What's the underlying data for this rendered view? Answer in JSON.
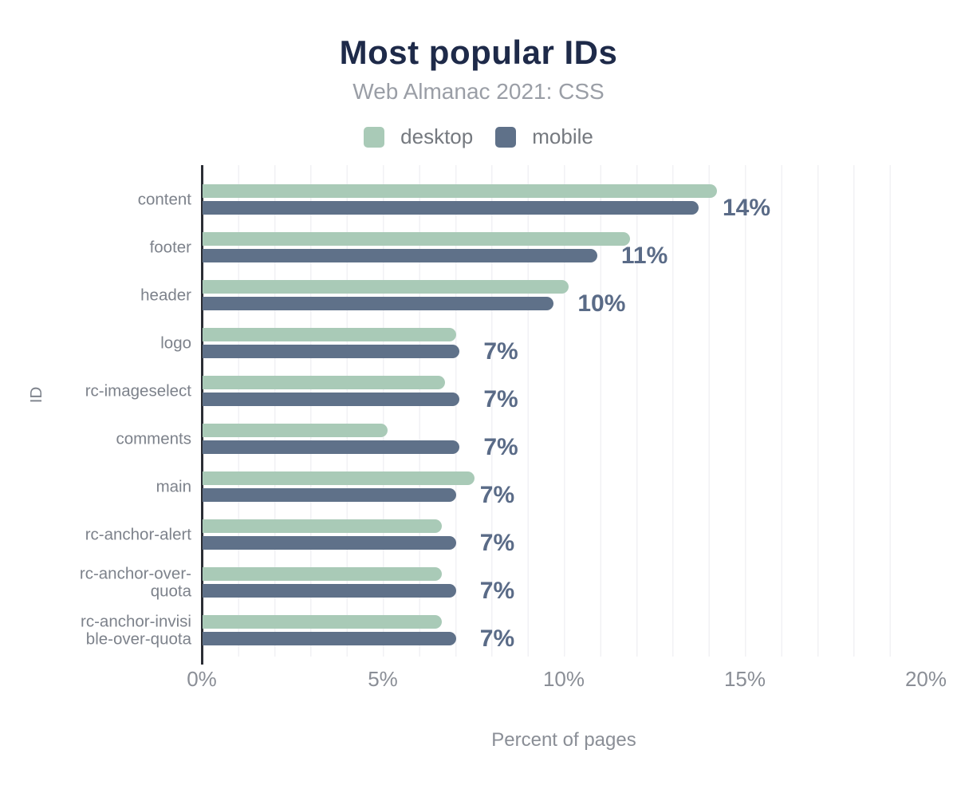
{
  "title": "Most popular IDs",
  "subtitle": "Web Almanac 2021: CSS",
  "axes": {
    "x_title": "Percent of pages",
    "y_title": "ID"
  },
  "colors": {
    "title": "#1e2a49",
    "desktop_bar": "#a9cab7",
    "mobile_bar": "#5f7189",
    "value_label": "#5a6b87",
    "axis_line": "#2b2e35"
  },
  "chart_data": {
    "type": "bar",
    "orientation": "horizontal",
    "title": "Most popular IDs",
    "subtitle": "Web Almanac 2021: CSS",
    "xlabel": "Percent of pages",
    "ylabel": "ID",
    "xlim": [
      0,
      20
    ],
    "x_ticks": [
      "0%",
      "5%",
      "10%",
      "15%",
      "20%"
    ],
    "x_tick_values": [
      0,
      5,
      10,
      15,
      20
    ],
    "grid": "vertical minor gridlines every 1%",
    "legend_position": "top",
    "categories": [
      "content",
      "footer",
      "header",
      "logo",
      "rc-imageselect",
      "comments",
      "main",
      "rc-anchor-alert",
      "rc-anchor-over-quota",
      "rc-anchor-invisible-over-quota"
    ],
    "category_display_lines": [
      [
        "content"
      ],
      [
        "footer"
      ],
      [
        "header"
      ],
      [
        "logo"
      ],
      [
        "rc-imageselect"
      ],
      [
        "comments"
      ],
      [
        "main"
      ],
      [
        "rc-anchor-alert"
      ],
      [
        "rc-anchor-over-",
        "quota"
      ],
      [
        "rc-anchor-invisi",
        "ble-over-quota"
      ]
    ],
    "series": [
      {
        "name": "desktop",
        "color": "#a9cab7",
        "values": [
          14.2,
          11.8,
          10.1,
          7.0,
          6.7,
          5.1,
          7.5,
          6.6,
          6.6,
          6.6
        ]
      },
      {
        "name": "mobile",
        "color": "#5f7189",
        "values": [
          13.7,
          10.9,
          9.7,
          7.1,
          7.1,
          7.1,
          7.0,
          7.0,
          7.0,
          7.0
        ]
      }
    ],
    "data_labels": [
      "14%",
      "11%",
      "10%",
      "7%",
      "7%",
      "7%",
      "7%",
      "7%",
      "7%",
      "7%"
    ]
  }
}
